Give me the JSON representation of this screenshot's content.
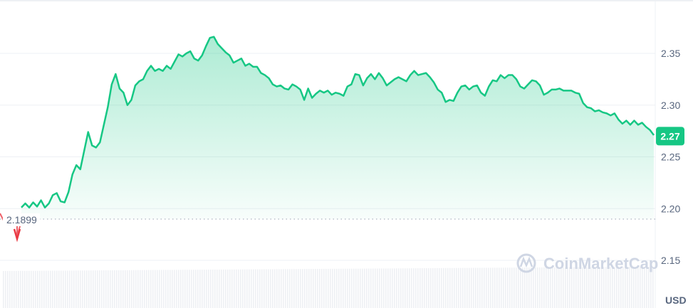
{
  "chart_data": {
    "type": "area",
    "title": "",
    "xlabel": "",
    "ylabel": "",
    "currency_label": "USD",
    "ylim": [
      2.13,
      2.4
    ],
    "yticks": [
      "2.15",
      "2.20",
      "2.25",
      "2.30",
      "2.35"
    ],
    "grid": true,
    "baseline": {
      "value": 2.1899,
      "label": "2.1899"
    },
    "current_price": {
      "value": 2.27,
      "label": "2.27"
    },
    "watermark": "CoinMarketCap",
    "colors": {
      "up": "#16c784",
      "down": "#ea3943",
      "tag": "#16c784",
      "axis_text": "#58667e",
      "volume": "#eef0f4"
    },
    "series": [
      {
        "values": [
          2.201,
          2.205,
          2.201,
          2.206,
          2.202,
          2.208,
          2.201,
          2.205,
          2.213,
          2.215,
          2.207,
          2.206,
          2.216,
          2.233,
          2.242,
          2.238,
          2.256,
          2.274,
          2.261,
          2.259,
          2.264,
          2.281,
          2.298,
          2.32,
          2.33,
          2.316,
          2.312,
          2.3,
          2.305,
          2.319,
          2.323,
          2.325,
          2.333,
          2.338,
          2.333,
          2.335,
          2.333,
          2.338,
          2.335,
          2.342,
          2.349,
          2.347,
          2.35,
          2.352,
          2.345,
          2.343,
          2.348,
          2.357,
          2.365,
          2.366,
          2.359,
          2.355,
          2.351,
          2.348,
          2.341,
          2.343,
          2.345,
          2.338,
          2.34,
          2.337,
          2.337,
          2.331,
          2.329,
          2.326,
          2.32,
          2.318,
          2.319,
          2.316,
          2.315,
          2.32,
          2.318,
          2.315,
          2.305,
          2.316,
          2.307,
          2.311,
          2.314,
          2.312,
          2.314,
          2.31,
          2.312,
          2.311,
          2.309,
          2.318,
          2.32,
          2.33,
          2.329,
          2.319,
          2.326,
          2.33,
          2.325,
          2.331,
          2.326,
          2.319,
          2.322,
          2.325,
          2.327,
          2.325,
          2.323,
          2.329,
          2.333,
          2.329,
          2.33,
          2.331,
          2.327,
          2.322,
          2.315,
          2.312,
          2.303,
          2.305,
          2.304,
          2.312,
          2.318,
          2.319,
          2.315,
          2.318,
          2.319,
          2.312,
          2.309,
          2.318,
          2.324,
          2.323,
          2.329,
          2.326,
          2.329,
          2.329,
          2.325,
          2.318,
          2.316,
          2.32,
          2.324,
          2.323,
          2.319,
          2.31,
          2.312,
          2.315,
          2.315,
          2.316,
          2.314,
          2.314,
          2.314,
          2.312,
          2.311,
          2.302,
          2.298,
          2.297,
          2.294,
          2.295,
          2.293,
          2.292,
          2.29,
          2.292,
          2.286,
          2.282,
          2.285,
          2.281,
          2.285,
          2.281,
          2.283,
          2.279,
          2.276,
          2.271
        ]
      }
    ]
  }
}
